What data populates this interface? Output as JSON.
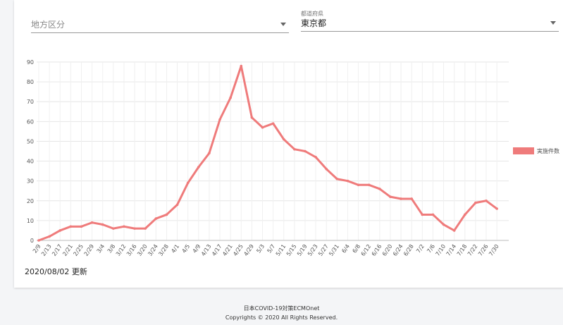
{
  "filters": {
    "region_placeholder": "地方区分",
    "prefecture_label": "都道府県",
    "prefecture_value": "東京都"
  },
  "chart_data": {
    "type": "line",
    "categories": [
      "2/9",
      "2/13",
      "2/17",
      "2/21",
      "2/25",
      "2/29",
      "3/4",
      "3/8",
      "3/12",
      "3/16",
      "3/20",
      "3/24",
      "3/28",
      "4/1",
      "4/5",
      "4/9",
      "4/13",
      "4/17",
      "4/21",
      "4/25",
      "4/29",
      "5/3",
      "5/7",
      "5/11",
      "5/15",
      "5/19",
      "5/23",
      "5/27",
      "5/31",
      "6/4",
      "6/8",
      "6/12",
      "6/16",
      "6/20",
      "6/24",
      "6/28",
      "7/2",
      "7/6",
      "7/10",
      "7/14",
      "7/18",
      "7/22",
      "7/26",
      "7/30"
    ],
    "series": [
      {
        "name": "実施件数",
        "color": "#ef7b7b",
        "values": [
          0,
          2,
          5,
          7,
          7,
          9,
          8,
          6,
          7,
          6,
          6,
          11,
          13,
          18,
          29,
          37,
          44,
          61,
          72,
          88,
          62,
          57,
          59,
          51,
          46,
          45,
          42,
          36,
          31,
          30,
          28,
          28,
          26,
          22,
          21,
          21,
          13,
          13,
          8,
          5,
          13,
          19,
          20,
          16
        ]
      }
    ],
    "ylim": [
      0,
      90
    ],
    "yticks": [
      0,
      10,
      20,
      30,
      40,
      50,
      60,
      70,
      80,
      90
    ],
    "grid": true,
    "legend": "right"
  },
  "updated": "2020/08/02 更新",
  "footer": {
    "org": "日本COVID-19対策ECMOnet",
    "copyright": "Copyrights © 2020 All Rights Reserved."
  }
}
